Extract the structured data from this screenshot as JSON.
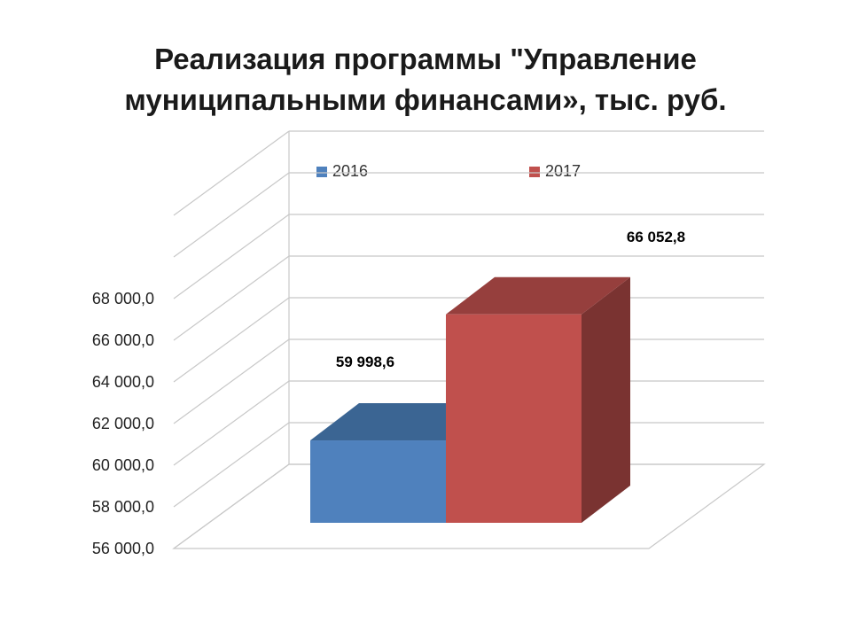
{
  "chart_data": {
    "type": "bar",
    "title_line1": "Реализация программы \"Управление",
    "title_line2": "муниципальными финансами», тыс. руб.",
    "categories": [
      ""
    ],
    "series": [
      {
        "name": "2016",
        "values": [
          59998.6
        ],
        "label": "59 998,6",
        "color": "#4F81BD",
        "top_color": "#3B6593",
        "side_color": "#35597F"
      },
      {
        "name": "2017",
        "values": [
          66052.8
        ],
        "label": "66 052,8",
        "color": "#C0504D",
        "top_color": "#963F3D",
        "side_color": "#7A3331"
      }
    ],
    "ylim": [
      56000,
      68000
    ],
    "y_ticks": [
      {
        "value": 56000,
        "label": "56 000,0"
      },
      {
        "value": 58000,
        "label": "58 000,0"
      },
      {
        "value": 60000,
        "label": "60 000,0"
      },
      {
        "value": 62000,
        "label": "62 000,0"
      },
      {
        "value": 64000,
        "label": "64 000,0"
      },
      {
        "value": 66000,
        "label": "66 000,0"
      },
      {
        "value": 68000,
        "label": "68 000,0"
      }
    ],
    "grid": true,
    "legend_position": "top",
    "style": "3d-clustered-column"
  }
}
